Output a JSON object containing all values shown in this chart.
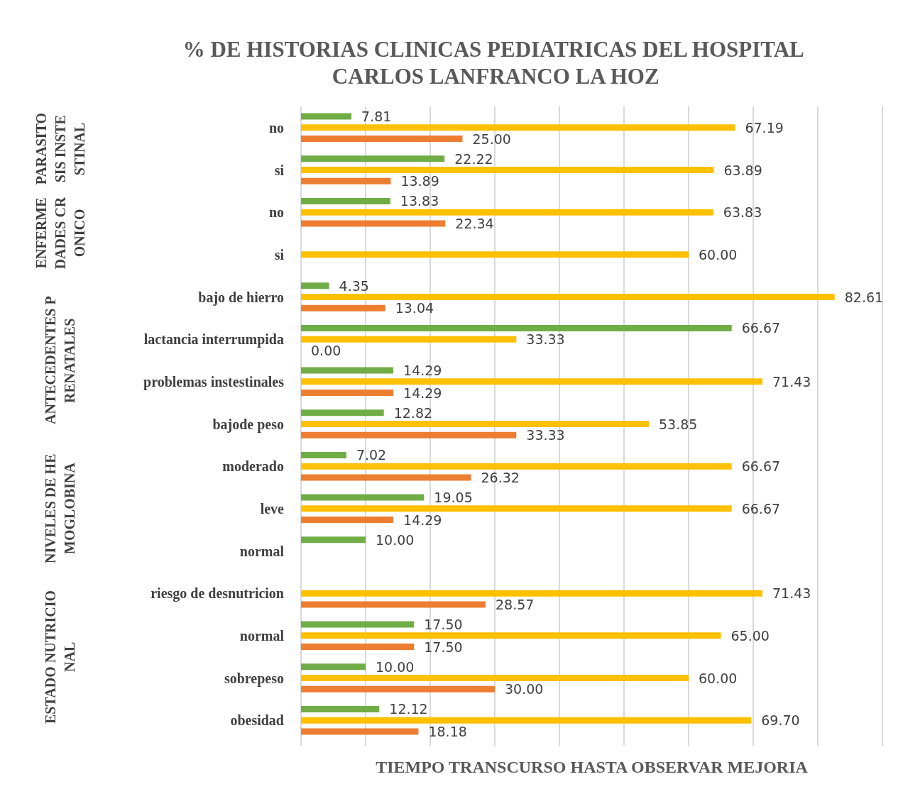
{
  "chart_data": {
    "type": "bar",
    "orientation": "horizontal",
    "title": "% DE HISTORIAS CLINICAS PEDIATRICAS DEL HOSPITAL CARLOS LANFRANCO LA HOZ",
    "xlabel": "TIEMPO TRANSCURSO HASTA OBSERVAR MEJORIA",
    "categories": [
      "no",
      "si",
      "no",
      "si",
      "bajo de hierro",
      "lactancia interrumpida",
      "problemas instestinales",
      "bajode peso",
      "moderado",
      "leve",
      "normal",
      "riesgo de desnutricion",
      "normal",
      "sobrepeso",
      "obesidad"
    ],
    "annotations": [
      "PARASITOSIS INSTESTINAL",
      "ENFERMEDADES CRONICO",
      "ANTECEDENTES PRENATALES",
      "NIVELES DE HEMOGLOBINA",
      "ESTADO NUTRICIONAL"
    ],
    "series": [
      {
        "color": "#70ad47",
        "values": [
          7.81,
          22.22,
          13.83,
          null,
          4.35,
          66.67,
          14.29,
          12.82,
          7.02,
          19.05,
          10.0,
          null,
          17.5,
          10.0,
          12.12
        ],
        "value_labels": [
          "7.81",
          "22.22",
          "13.83",
          null,
          "4.35",
          "66.67",
          "14.29",
          "12.82",
          "7.02",
          "19.05",
          "10.00",
          null,
          "17.50",
          "10.00",
          "12.12"
        ]
      },
      {
        "color": "#ffc000",
        "values": [
          67.19,
          63.89,
          63.83,
          60.0,
          82.61,
          33.33,
          71.43,
          53.85,
          66.67,
          66.67,
          null,
          71.43,
          65.0,
          60.0,
          69.7
        ],
        "value_labels": [
          "67.19",
          "63.89",
          "63.83",
          "60.00",
          "82.61",
          "33.33",
          "71.43",
          "53.85",
          "66.67",
          "66.67",
          null,
          "71.43",
          "65.00",
          "60.00",
          "69.70"
        ]
      },
      {
        "color": "#ed7d31",
        "values": [
          25.0,
          13.89,
          22.34,
          null,
          13.04,
          0.0,
          14.29,
          33.33,
          26.32,
          14.29,
          null,
          28.57,
          17.5,
          30.0,
          18.18
        ],
        "value_labels": [
          "25.00",
          "13.89",
          "22.34",
          null,
          "13.04",
          "0.00",
          "14.29",
          "33.33",
          "26.32",
          "14.29",
          null,
          "28.57",
          "17.50",
          "30.00",
          "18.18"
        ]
      }
    ],
    "xlim": [
      0,
      90
    ],
    "xticks": [
      {
        "value": 0,
        "label": null
      },
      {
        "value": 10,
        "label": null
      },
      {
        "value": 20,
        "label": null
      },
      {
        "value": 30,
        "label": null
      },
      {
        "value": 40,
        "label": null
      },
      {
        "value": 50,
        "label": null
      },
      {
        "value": 60,
        "label": null
      },
      {
        "value": 70,
        "label": null
      },
      {
        "value": 80,
        "label": null
      },
      {
        "value": 90,
        "label": null
      }
    ],
    "grid": "x"
  }
}
